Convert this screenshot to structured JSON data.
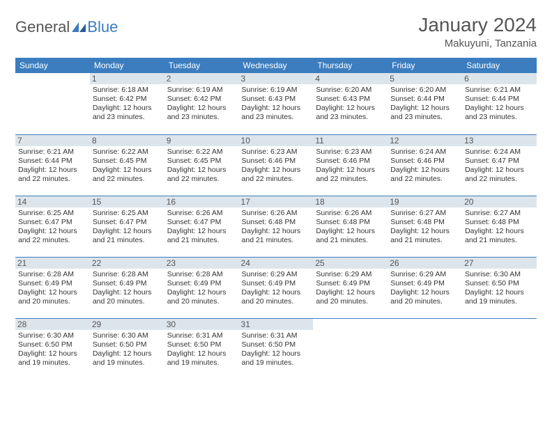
{
  "logo": {
    "text1": "General",
    "text2": "Blue"
  },
  "title": "January 2024",
  "location": "Makuyuni, Tanzania",
  "colors": {
    "header_bg": "#3b7dbf",
    "header_fg": "#ffffff",
    "daynum_bg": "#dde5ec",
    "border": "#3b7dbf",
    "text": "#333333"
  },
  "weekdays": [
    "Sunday",
    "Monday",
    "Tuesday",
    "Wednesday",
    "Thursday",
    "Friday",
    "Saturday"
  ],
  "weeks": [
    [
      {
        "blank": true
      },
      {
        "n": "1",
        "sunrise": "6:18 AM",
        "sunset": "6:42 PM",
        "daylight": "12 hours and 23 minutes."
      },
      {
        "n": "2",
        "sunrise": "6:19 AM",
        "sunset": "6:42 PM",
        "daylight": "12 hours and 23 minutes."
      },
      {
        "n": "3",
        "sunrise": "6:19 AM",
        "sunset": "6:43 PM",
        "daylight": "12 hours and 23 minutes."
      },
      {
        "n": "4",
        "sunrise": "6:20 AM",
        "sunset": "6:43 PM",
        "daylight": "12 hours and 23 minutes."
      },
      {
        "n": "5",
        "sunrise": "6:20 AM",
        "sunset": "6:44 PM",
        "daylight": "12 hours and 23 minutes."
      },
      {
        "n": "6",
        "sunrise": "6:21 AM",
        "sunset": "6:44 PM",
        "daylight": "12 hours and 23 minutes."
      }
    ],
    [
      {
        "n": "7",
        "sunrise": "6:21 AM",
        "sunset": "6:44 PM",
        "daylight": "12 hours and 22 minutes."
      },
      {
        "n": "8",
        "sunrise": "6:22 AM",
        "sunset": "6:45 PM",
        "daylight": "12 hours and 22 minutes."
      },
      {
        "n": "9",
        "sunrise": "6:22 AM",
        "sunset": "6:45 PM",
        "daylight": "12 hours and 22 minutes."
      },
      {
        "n": "10",
        "sunrise": "6:23 AM",
        "sunset": "6:46 PM",
        "daylight": "12 hours and 22 minutes."
      },
      {
        "n": "11",
        "sunrise": "6:23 AM",
        "sunset": "6:46 PM",
        "daylight": "12 hours and 22 minutes."
      },
      {
        "n": "12",
        "sunrise": "6:24 AM",
        "sunset": "6:46 PM",
        "daylight": "12 hours and 22 minutes."
      },
      {
        "n": "13",
        "sunrise": "6:24 AM",
        "sunset": "6:47 PM",
        "daylight": "12 hours and 22 minutes."
      }
    ],
    [
      {
        "n": "14",
        "sunrise": "6:25 AM",
        "sunset": "6:47 PM",
        "daylight": "12 hours and 22 minutes."
      },
      {
        "n": "15",
        "sunrise": "6:25 AM",
        "sunset": "6:47 PM",
        "daylight": "12 hours and 21 minutes."
      },
      {
        "n": "16",
        "sunrise": "6:26 AM",
        "sunset": "6:47 PM",
        "daylight": "12 hours and 21 minutes."
      },
      {
        "n": "17",
        "sunrise": "6:26 AM",
        "sunset": "6:48 PM",
        "daylight": "12 hours and 21 minutes."
      },
      {
        "n": "18",
        "sunrise": "6:26 AM",
        "sunset": "6:48 PM",
        "daylight": "12 hours and 21 minutes."
      },
      {
        "n": "19",
        "sunrise": "6:27 AM",
        "sunset": "6:48 PM",
        "daylight": "12 hours and 21 minutes."
      },
      {
        "n": "20",
        "sunrise": "6:27 AM",
        "sunset": "6:48 PM",
        "daylight": "12 hours and 21 minutes."
      }
    ],
    [
      {
        "n": "21",
        "sunrise": "6:28 AM",
        "sunset": "6:49 PM",
        "daylight": "12 hours and 20 minutes."
      },
      {
        "n": "22",
        "sunrise": "6:28 AM",
        "sunset": "6:49 PM",
        "daylight": "12 hours and 20 minutes."
      },
      {
        "n": "23",
        "sunrise": "6:28 AM",
        "sunset": "6:49 PM",
        "daylight": "12 hours and 20 minutes."
      },
      {
        "n": "24",
        "sunrise": "6:29 AM",
        "sunset": "6:49 PM",
        "daylight": "12 hours and 20 minutes."
      },
      {
        "n": "25",
        "sunrise": "6:29 AM",
        "sunset": "6:49 PM",
        "daylight": "12 hours and 20 minutes."
      },
      {
        "n": "26",
        "sunrise": "6:29 AM",
        "sunset": "6:49 PM",
        "daylight": "12 hours and 20 minutes."
      },
      {
        "n": "27",
        "sunrise": "6:30 AM",
        "sunset": "6:50 PM",
        "daylight": "12 hours and 19 minutes."
      }
    ],
    [
      {
        "n": "28",
        "sunrise": "6:30 AM",
        "sunset": "6:50 PM",
        "daylight": "12 hours and 19 minutes."
      },
      {
        "n": "29",
        "sunrise": "6:30 AM",
        "sunset": "6:50 PM",
        "daylight": "12 hours and 19 minutes."
      },
      {
        "n": "30",
        "sunrise": "6:31 AM",
        "sunset": "6:50 PM",
        "daylight": "12 hours and 19 minutes."
      },
      {
        "n": "31",
        "sunrise": "6:31 AM",
        "sunset": "6:50 PM",
        "daylight": "12 hours and 19 minutes."
      },
      {
        "blank": true
      },
      {
        "blank": true
      },
      {
        "blank": true
      }
    ]
  ],
  "labels": {
    "sunrise": "Sunrise:",
    "sunset": "Sunset:",
    "daylight": "Daylight:"
  }
}
